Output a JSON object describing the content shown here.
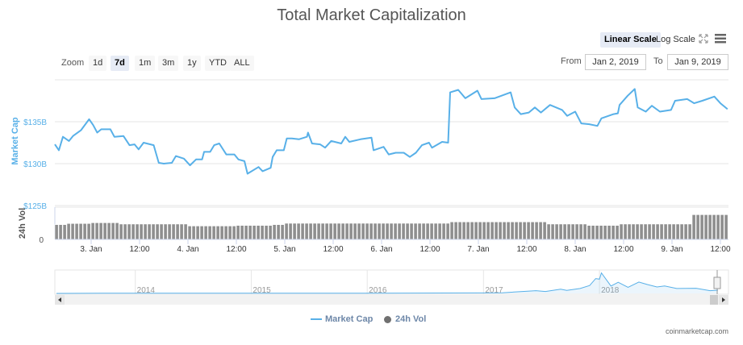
{
  "title": "Total Market Capitalization",
  "toolbar": {
    "linear_scale": "Linear Scale",
    "log_scale": "Log Scale",
    "fullscreen_icon": "fullscreen-icon",
    "menu_icon": "hamburger-menu-icon",
    "zoom_label": "Zoom",
    "zoom_buttons": [
      "1d",
      "7d",
      "1m",
      "3m",
      "1y",
      "YTD",
      "ALL"
    ],
    "zoom_selected": "7d",
    "from_label": "From",
    "from_value": "Jan 2, 2019",
    "to_label": "To",
    "to_value": "Jan 9, 2019"
  },
  "legend": {
    "market_cap": "Market Cap",
    "vol": "24h Vol"
  },
  "credit": "coinmarketcap.com",
  "colors": {
    "market_cap": "#58b0e8",
    "volume": "#8e8e8e",
    "title": "#555555",
    "axis_label": "#58b0e8"
  },
  "chart_data": {
    "type": "line",
    "title": "Total Market Capitalization",
    "xlim": [
      "2019-01-02 15:00",
      "2019-01-09 14:00"
    ],
    "x_ticks": [
      {
        "t": "2019-01-03 00:00",
        "label": "3. Jan"
      },
      {
        "t": "2019-01-03 12:00",
        "label": "12:00"
      },
      {
        "t": "2019-01-04 00:00",
        "label": "4. Jan"
      },
      {
        "t": "2019-01-04 12:00",
        "label": "12:00"
      },
      {
        "t": "2019-01-05 00:00",
        "label": "5. Jan"
      },
      {
        "t": "2019-01-05 12:00",
        "label": "12:00"
      },
      {
        "t": "2019-01-06 00:00",
        "label": "6. Jan"
      },
      {
        "t": "2019-01-06 12:00",
        "label": "12:00"
      },
      {
        "t": "2019-01-07 00:00",
        "label": "7. Jan"
      },
      {
        "t": "2019-01-07 12:00",
        "label": "12:00"
      },
      {
        "t": "2019-01-08 00:00",
        "label": "8. Jan"
      },
      {
        "t": "2019-01-08 12:00",
        "label": "12:00"
      },
      {
        "t": "2019-01-09 00:00",
        "label": "9. Jan"
      },
      {
        "t": "2019-01-09 12:00",
        "label": "12:00"
      }
    ],
    "market_cap": {
      "name": "Market Cap",
      "ylabel": "Market Cap",
      "ylim": [
        125,
        140
      ],
      "y_ticks": [
        {
          "v": 125,
          "label": "$125B"
        },
        {
          "v": 130,
          "label": "$130B"
        },
        {
          "v": 135,
          "label": "$135B"
        }
      ],
      "grid": true,
      "points": [
        [
          "2019-01-02 15:00",
          132.3
        ],
        [
          "2019-01-02 16:00",
          131.6
        ],
        [
          "2019-01-02 17:00",
          133.2
        ],
        [
          "2019-01-02 18:30",
          132.7
        ],
        [
          "2019-01-02 19:30",
          133.3
        ],
        [
          "2019-01-02 21:30",
          134.0
        ],
        [
          "2019-01-02 23:30",
          135.3
        ],
        [
          "2019-01-03 00:30",
          134.6
        ],
        [
          "2019-01-03 01:30",
          133.7
        ],
        [
          "2019-01-03 02:30",
          134.1
        ],
        [
          "2019-01-03 04:45",
          134.1
        ],
        [
          "2019-01-03 05:45",
          133.2
        ],
        [
          "2019-01-03 08:00",
          133.3
        ],
        [
          "2019-01-03 09:30",
          132.2
        ],
        [
          "2019-01-03 10:45",
          132.3
        ],
        [
          "2019-01-03 11:45",
          131.7
        ],
        [
          "2019-01-03 13:00",
          132.5
        ],
        [
          "2019-01-03 15:30",
          132.2
        ],
        [
          "2019-01-03 16:45",
          130.1
        ],
        [
          "2019-01-03 18:00",
          130.0
        ],
        [
          "2019-01-03 20:00",
          130.1
        ],
        [
          "2019-01-03 21:00",
          130.9
        ],
        [
          "2019-01-03 23:00",
          130.6
        ],
        [
          "2019-01-04 00:30",
          129.8
        ],
        [
          "2019-01-04 02:00",
          130.5
        ],
        [
          "2019-01-04 03:30",
          130.5
        ],
        [
          "2019-01-04 04:00",
          131.4
        ],
        [
          "2019-01-04 05:30",
          131.4
        ],
        [
          "2019-01-04 06:30",
          132.2
        ],
        [
          "2019-01-04 07:45",
          132.4
        ],
        [
          "2019-01-04 09:30",
          131.1
        ],
        [
          "2019-01-04 11:30",
          131.1
        ],
        [
          "2019-01-04 12:30",
          130.5
        ],
        [
          "2019-01-04 14:00",
          130.3
        ],
        [
          "2019-01-04 14:45",
          128.8
        ],
        [
          "2019-01-04 17:30",
          129.6
        ],
        [
          "2019-01-04 18:30",
          129.1
        ],
        [
          "2019-01-04 20:30",
          129.5
        ],
        [
          "2019-01-04 21:00",
          130.8
        ],
        [
          "2019-01-04 22:00",
          131.6
        ],
        [
          "2019-01-04 23:45",
          131.6
        ],
        [
          "2019-01-05 00:30",
          133.0
        ],
        [
          "2019-01-05 01:45",
          133.0
        ],
        [
          "2019-01-05 03:30",
          132.9
        ],
        [
          "2019-01-05 05:30",
          133.2
        ],
        [
          "2019-01-05 05:45",
          133.7
        ],
        [
          "2019-01-05 06:45",
          132.4
        ],
        [
          "2019-01-05 08:45",
          132.3
        ],
        [
          "2019-01-05 10:00",
          131.9
        ],
        [
          "2019-01-05 11:30",
          132.7
        ],
        [
          "2019-01-05 14:00",
          132.4
        ],
        [
          "2019-01-05 15:00",
          133.2
        ],
        [
          "2019-01-05 16:00",
          132.6
        ],
        [
          "2019-01-05 18:45",
          132.9
        ],
        [
          "2019-01-05 21:30",
          133.1
        ],
        [
          "2019-01-05 22:00",
          131.6
        ],
        [
          "2019-01-06 00:30",
          132.0
        ],
        [
          "2019-01-06 01:45",
          131.1
        ],
        [
          "2019-01-06 03:30",
          131.3
        ],
        [
          "2019-01-06 05:30",
          131.3
        ],
        [
          "2019-01-06 07:00",
          130.8
        ],
        [
          "2019-01-06 08:30",
          131.3
        ],
        [
          "2019-01-06 10:00",
          132.2
        ],
        [
          "2019-01-06 11:45",
          132.5
        ],
        [
          "2019-01-06 12:30",
          131.9
        ],
        [
          "2019-01-06 15:00",
          132.6
        ],
        [
          "2019-01-06 16:30",
          132.5
        ],
        [
          "2019-01-06 17:00",
          138.5
        ],
        [
          "2019-01-06 19:00",
          138.8
        ],
        [
          "2019-01-06 20:45",
          137.8
        ],
        [
          "2019-01-06 23:45",
          138.7
        ],
        [
          "2019-01-07 00:45",
          137.7
        ],
        [
          "2019-01-07 04:00",
          137.8
        ],
        [
          "2019-01-07 08:00",
          138.5
        ],
        [
          "2019-01-07 09:00",
          136.7
        ],
        [
          "2019-01-07 10:30",
          135.9
        ],
        [
          "2019-01-07 12:30",
          136.1
        ],
        [
          "2019-01-07 14:00",
          136.7
        ],
        [
          "2019-01-07 15:30",
          136.1
        ],
        [
          "2019-01-07 17:45",
          137.0
        ],
        [
          "2019-01-07 20:45",
          136.4
        ],
        [
          "2019-01-07 22:00",
          135.7
        ],
        [
          "2019-01-08 00:00",
          136.2
        ],
        [
          "2019-01-08 01:30",
          134.8
        ],
        [
          "2019-01-08 03:30",
          134.7
        ],
        [
          "2019-01-08 05:30",
          134.5
        ],
        [
          "2019-01-08 06:30",
          135.4
        ],
        [
          "2019-01-08 09:30",
          135.9
        ],
        [
          "2019-01-08 10:35",
          136.0
        ],
        [
          "2019-01-08 11:00",
          137.0
        ],
        [
          "2019-01-08 13:00",
          138.1
        ],
        [
          "2019-01-08 14:45",
          138.9
        ],
        [
          "2019-01-08 15:30",
          136.7
        ],
        [
          "2019-01-08 17:30",
          136.2
        ],
        [
          "2019-01-08 19:00",
          136.9
        ],
        [
          "2019-01-08 21:00",
          136.2
        ],
        [
          "2019-01-08 23:45",
          136.4
        ],
        [
          "2019-01-09 00:45",
          137.5
        ],
        [
          "2019-01-09 03:45",
          137.7
        ],
        [
          "2019-01-09 05:30",
          137.2
        ],
        [
          "2019-01-09 07:30",
          137.5
        ],
        [
          "2019-01-09 10:30",
          138.0
        ],
        [
          "2019-01-09 12:00",
          137.2
        ],
        [
          "2019-01-09 13:45",
          136.5
        ]
      ]
    },
    "volume": {
      "name": "24h Vol",
      "ylabel": "24h Vol",
      "type": "bar",
      "y_ticks": [
        {
          "v": 0,
          "label": "0"
        }
      ],
      "ylim": [
        0,
        30
      ],
      "steps": [
        [
          "2019-01-02 15:00",
          13.75
        ],
        [
          "2019-01-02 17:45",
          14.8
        ],
        [
          "2019-01-02 23:30",
          15.5
        ],
        [
          "2019-01-03 06:45",
          14.3
        ],
        [
          "2019-01-04 00:00",
          12.5
        ],
        [
          "2019-01-04 11:30",
          13.0
        ],
        [
          "2019-01-04 20:45",
          13.75
        ],
        [
          "2019-01-05 00:00",
          15.0
        ],
        [
          "2019-01-06 16:45",
          16.3
        ],
        [
          "2019-01-07 16:45",
          14.3
        ],
        [
          "2019-01-08 02:45",
          13.0
        ],
        [
          "2019-01-08 10:45",
          14.3
        ],
        [
          "2019-01-09 05:00",
          23.0
        ],
        [
          "2019-01-09 13:30",
          13.75
        ]
      ]
    },
    "navigator": {
      "type": "area",
      "x_labels": [
        "2014",
        "2015",
        "2016",
        "2017",
        "2018"
      ],
      "points": [
        [
          "2013-04-28",
          1.5
        ],
        [
          "2013-12-01",
          10
        ],
        [
          "2014-06-01",
          8
        ],
        [
          "2015-01-01",
          5
        ],
        [
          "2016-01-01",
          7
        ],
        [
          "2017-01-01",
          18
        ],
        [
          "2017-03-01",
          25
        ],
        [
          "2017-06-15",
          110
        ],
        [
          "2017-07-15",
          80
        ],
        [
          "2017-09-01",
          170
        ],
        [
          "2017-09-20",
          120
        ],
        [
          "2017-11-01",
          200
        ],
        [
          "2017-12-01",
          320
        ],
        [
          "2017-12-20",
          600
        ],
        [
          "2018-01-01",
          580
        ],
        [
          "2018-01-07",
          830
        ],
        [
          "2018-02-06",
          300
        ],
        [
          "2018-03-01",
          450
        ],
        [
          "2018-04-01",
          250
        ],
        [
          "2018-05-05",
          460
        ],
        [
          "2018-06-01",
          360
        ],
        [
          "2018-07-01",
          260
        ],
        [
          "2018-07-25",
          300
        ],
        [
          "2018-09-01",
          200
        ],
        [
          "2018-11-01",
          210
        ],
        [
          "2018-12-15",
          110
        ],
        [
          "2019-01-09",
          130
        ]
      ]
    }
  }
}
